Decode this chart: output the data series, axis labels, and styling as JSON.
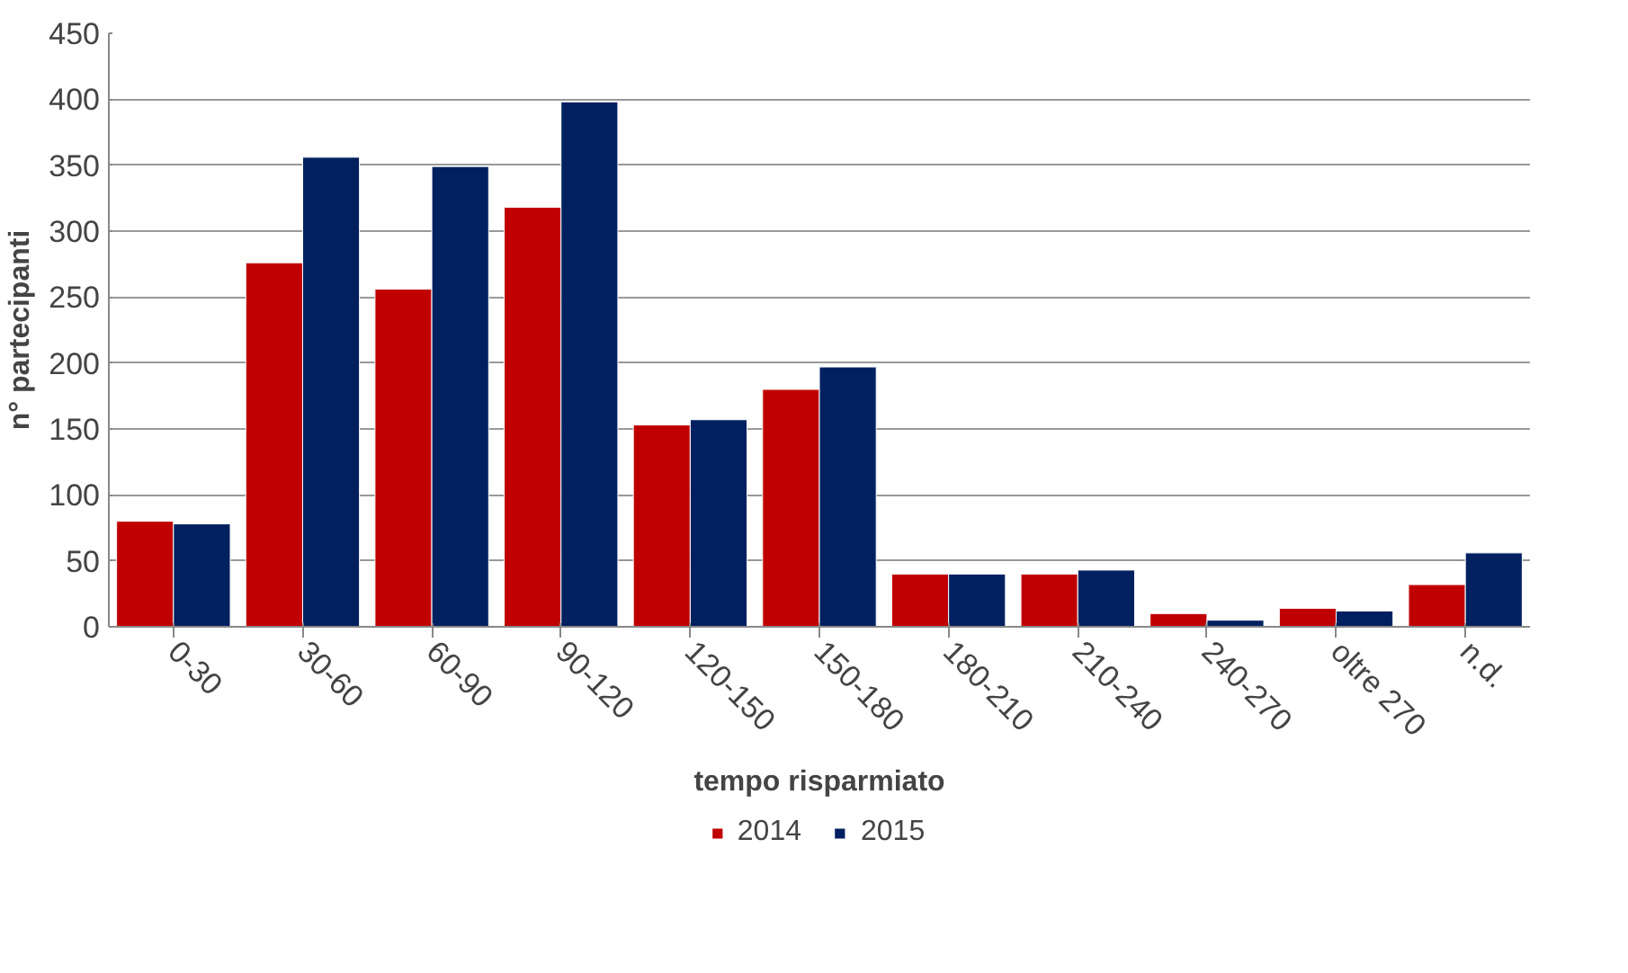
{
  "chart_data": {
    "type": "bar",
    "xlabel": "tempo risparmiato",
    "ylabel": "n° partecipanti",
    "categories": [
      "0-30",
      "30-60",
      "60-90",
      "90-120",
      "120-150",
      "150-180",
      "180-210",
      "210-240",
      "240-270",
      "oltre 270",
      "n.d."
    ],
    "series": [
      {
        "name": "2014",
        "color": "#c00000",
        "values": [
          80,
          276,
          256,
          318,
          153,
          180,
          40,
          40,
          10,
          14,
          32
        ]
      },
      {
        "name": "2015",
        "color": "#002060",
        "values": [
          78,
          356,
          349,
          398,
          157,
          197,
          40,
          43,
          5,
          12,
          56
        ]
      }
    ],
    "ylim": [
      0,
      450
    ],
    "yticks": [
      0,
      50,
      100,
      150,
      200,
      250,
      300,
      350,
      400,
      450
    ],
    "grid": "y",
    "legend": "bottom"
  }
}
